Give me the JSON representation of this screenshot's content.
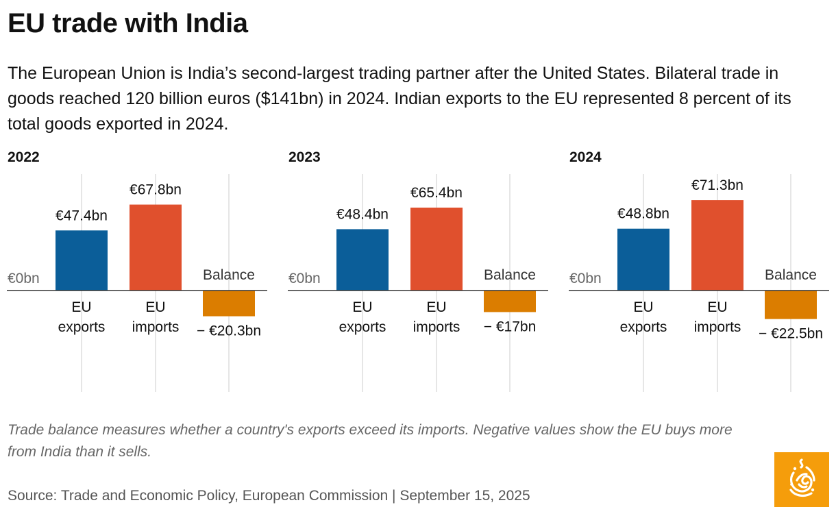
{
  "title": "EU trade with India",
  "subtitle": "The European Union is India’s second-largest trading partner after the United States. Bilateral trade in goods reached 120 billion euros ($141bn) in 2024. Indian exports to the EU represented 8 percent of its total goods exported in 2024.",
  "note": "Trade balance measures whether a country's exports exceed its imports. Negative values show the EU buys more from India than it sells.",
  "source": "Source: Trade and Economic Policy, European Commission | September 15, 2025",
  "logo_icon": "al-jazeera-logo-icon",
  "colors": {
    "exports": "#0b5e99",
    "imports": "#e0502d",
    "balance": "#db7d00",
    "gridline": "#e6e6e6",
    "baseline": "#333333",
    "logo_bg": "#f59d0b"
  },
  "chart_data": [
    {
      "type": "bar",
      "title": "2022",
      "zero_label": "€0bn",
      "categories": [
        "EU exports",
        "EU imports",
        "Balance"
      ],
      "category_lines": [
        [
          "EU",
          "exports"
        ],
        [
          "EU",
          "imports"
        ],
        [
          "Balance"
        ]
      ],
      "values": [
        47.4,
        67.8,
        -20.3
      ],
      "value_labels": [
        "€47.4bn",
        "€67.8bn",
        "− €20.3bn"
      ],
      "ylim": [
        -25,
        80
      ],
      "grid": true
    },
    {
      "type": "bar",
      "title": "2023",
      "zero_label": "€0bn",
      "categories": [
        "EU exports",
        "EU imports",
        "Balance"
      ],
      "category_lines": [
        [
          "EU",
          "exports"
        ],
        [
          "EU",
          "imports"
        ],
        [
          "Balance"
        ]
      ],
      "values": [
        48.4,
        65.4,
        -17
      ],
      "value_labels": [
        "€48.4bn",
        "€65.4bn",
        "− €17bn"
      ],
      "ylim": [
        -25,
        80
      ],
      "grid": true
    },
    {
      "type": "bar",
      "title": "2024",
      "zero_label": "€0bn",
      "categories": [
        "EU exports",
        "EU imports",
        "Balance"
      ],
      "category_lines": [
        [
          "EU",
          "exports"
        ],
        [
          "EU",
          "imports"
        ],
        [
          "Balance"
        ]
      ],
      "values": [
        48.8,
        71.3,
        -22.5
      ],
      "value_labels": [
        "€48.8bn",
        "€71.3bn",
        "− €22.5bn"
      ],
      "ylim": [
        -25,
        80
      ],
      "grid": true
    }
  ]
}
